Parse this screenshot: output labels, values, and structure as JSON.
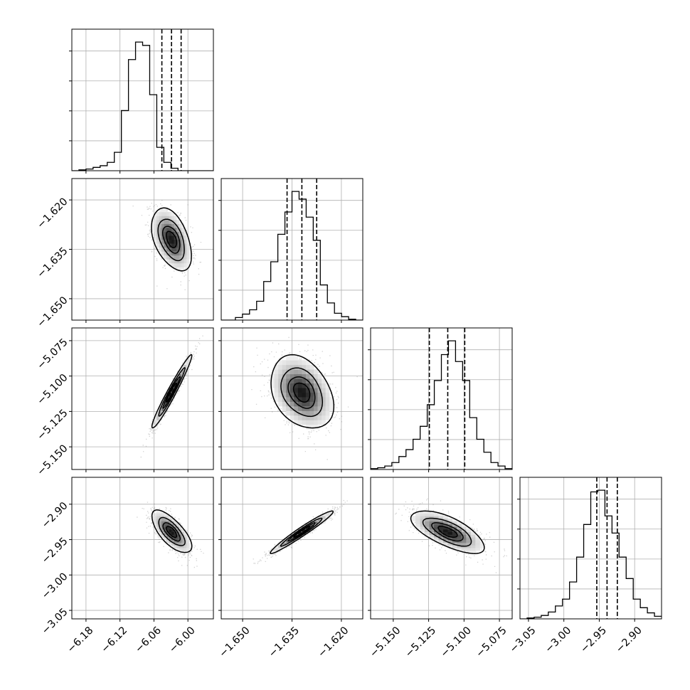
{
  "chart_data": {
    "type": "corner",
    "description_params": [
      "p0",
      "p1",
      "p2",
      "p3"
    ],
    "title": "",
    "grid": true,
    "parameters": [
      {
        "key": "p0",
        "label": "",
        "range": [
          -6.205,
          -5.955
        ],
        "ticks": [
          {
            "value": -6.18,
            "label": "−6.18"
          },
          {
            "value": -6.12,
            "label": "−6.12"
          },
          {
            "value": -6.06,
            "label": "−6.06"
          },
          {
            "value": -6.0,
            "label": "−6.00"
          }
        ],
        "quantiles": [
          -6.046,
          -6.029,
          -6.012
        ],
        "histogram": {
          "edges_start": -6.205,
          "bin_width": 0.0125,
          "counts": [
            0,
            1,
            2,
            4,
            6,
            10,
            22,
            72,
            133,
            154,
            150,
            91,
            28,
            10,
            3,
            0,
            0,
            0,
            0,
            0
          ]
        }
      },
      {
        "key": "p1",
        "label": "",
        "range": [
          -1.6565,
          -1.6135
        ],
        "ticks": [
          {
            "value": -1.65,
            "label": "−1.650"
          },
          {
            "value": -1.635,
            "label": "−1.635"
          },
          {
            "value": -1.62,
            "label": "−1.620"
          }
        ],
        "quantiles": [
          -1.6365,
          -1.632,
          -1.6275
        ],
        "histogram": {
          "edges_start": -1.6565,
          "bin_width": 0.00215,
          "counts": [
            0,
            0,
            3,
            7,
            12,
            22,
            45,
            68,
            100,
            126,
            150,
            141,
            120,
            93,
            41,
            20,
            8,
            4,
            1,
            0
          ]
        }
      },
      {
        "key": "p2",
        "label": "",
        "range": [
          -5.166,
          -5.066
        ],
        "ticks": [
          {
            "value": -5.15,
            "label": "−5.150"
          },
          {
            "value": -5.125,
            "label": "−5.125"
          },
          {
            "value": -5.1,
            "label": "−5.100"
          },
          {
            "value": -5.075,
            "label": "−5.075"
          }
        ],
        "quantiles": [
          -5.1245,
          -5.1115,
          -5.0995
        ],
        "histogram": {
          "edges_start": -5.166,
          "bin_width": 0.005,
          "counts": [
            1,
            2,
            4,
            8,
            15,
            23,
            35,
            50,
            75,
            103,
            133,
            149,
            125,
            103,
            60,
            35,
            20,
            8,
            4,
            1
          ]
        }
      },
      {
        "key": "p3",
        "label": "",
        "range": [
          -3.062,
          -2.862
        ],
        "ticks": [
          {
            "value": -3.05,
            "label": "−3.05"
          },
          {
            "value": -3.0,
            "label": "−3.00"
          },
          {
            "value": -2.95,
            "label": "−2.95"
          },
          {
            "value": -2.9,
            "label": "−2.90"
          }
        ],
        "quantiles": [
          -2.9535,
          -2.939,
          -2.9245
        ],
        "histogram": {
          "edges_start": -3.062,
          "bin_width": 0.01,
          "counts": [
            0,
            1,
            2,
            4,
            8,
            15,
            23,
            43,
            72,
            110,
            148,
            150,
            120,
            100,
            72,
            47,
            23,
            13,
            7,
            3
          ]
        }
      }
    ],
    "pairs": [
      {
        "x": "p0",
        "y": "p1",
        "mean": [
          -6.029,
          -1.632
        ],
        "sd": [
          0.017,
          0.0046
        ],
        "corr": -0.45
      },
      {
        "x": "p0",
        "y": "p2",
        "mean": [
          -6.029,
          -5.1115
        ],
        "sd": [
          0.017,
          0.0125
        ],
        "corr": 0.97
      },
      {
        "x": "p1",
        "y": "p2",
        "mean": [
          -1.632,
          -5.1115
        ],
        "sd": [
          0.0046,
          0.0125
        ],
        "corr": -0.32
      },
      {
        "x": "p0",
        "y": "p3",
        "mean": [
          -6.029,
          -2.939
        ],
        "sd": [
          0.017,
          0.0145
        ],
        "corr": -0.7
      },
      {
        "x": "p1",
        "y": "p3",
        "mean": [
          -1.632,
          -2.939
        ],
        "sd": [
          0.0046,
          0.0145
        ],
        "corr": 0.97
      },
      {
        "x": "p2",
        "y": "p3",
        "mean": [
          -5.1115,
          -2.939
        ],
        "sd": [
          0.0125,
          0.0145
        ],
        "corr": -0.68
      }
    ],
    "contour_levels_sigma": [
      0.5,
      1.0,
      1.5,
      2.0
    ],
    "colors": {
      "line": "#000000",
      "grid": "#b0b0b0",
      "scatter": "#7f7f7f",
      "density_dark": "#000000",
      "background": "#ffffff"
    }
  }
}
